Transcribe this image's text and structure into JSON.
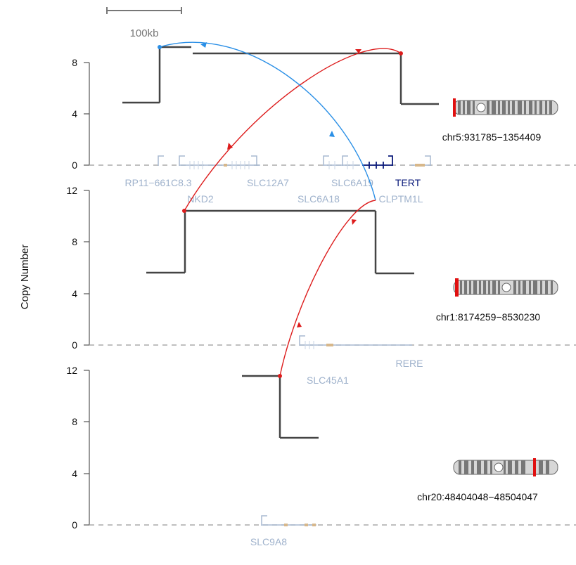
{
  "y_axis_label": "Copy Number",
  "scale_bar_label": "100kb",
  "colors": {
    "cn_line": "#444444",
    "baseline": "#aaaaaa",
    "gene": "#a7b8d0",
    "gene_highlight": "#0a1a7a",
    "gene_exon_alt": "#d7b78a",
    "link_red": "#dd1c1c",
    "link_blue": "#2a8fe6",
    "ideogram_band_dark": "#777777",
    "ideogram_band_light": "#d7d7d7",
    "ideogram_marker": "#e01010"
  },
  "chart_data": {
    "type": "genome-track",
    "tracks": [
      {
        "name": "chr5",
        "location_label": "chr5:931785−1354409",
        "yticks": [
          0,
          4,
          8
        ],
        "genes": [
          {
            "label": "RP11−661C8.3",
            "highlight": false
          },
          {
            "label": "NKD2",
            "highlight": false
          },
          {
            "label": "SLC12A7",
            "highlight": false
          },
          {
            "label": "SLC6A19",
            "highlight": false
          },
          {
            "label": "SLC6A18",
            "highlight": false
          },
          {
            "label": "TERT",
            "highlight": true
          },
          {
            "label": "CLPTM1L",
            "highlight": false
          }
        ],
        "copy_number_segments": [
          {
            "cn": 4.9
          },
          {
            "cn": 9.3
          },
          {
            "cn": 8.8
          },
          {
            "cn": 4.9
          }
        ],
        "ideogram_marker": "left"
      },
      {
        "name": "chr1",
        "location_label": "chr1:8174259−8530230",
        "yticks": [
          0,
          4,
          8,
          12
        ],
        "genes": [
          {
            "label": "SLC45A1",
            "highlight": false
          },
          {
            "label": "RERE",
            "highlight": false
          }
        ],
        "copy_number_segments": [
          {
            "cn": 5.7
          },
          {
            "cn": 10.5
          },
          {
            "cn": 5.7
          }
        ],
        "ideogram_marker": "left"
      },
      {
        "name": "chr20",
        "location_label": "chr20:48404048−48504047",
        "yticks": [
          0,
          4,
          8,
          12
        ],
        "genes": [
          {
            "label": "SLC9A8",
            "highlight": false
          }
        ],
        "copy_number_segments": [
          {
            "cn": 11.7
          },
          {
            "cn": 6.8
          }
        ],
        "ideogram_marker": "right"
      }
    ],
    "links": [
      {
        "from": "chr5",
        "to": "chr5",
        "color": "red"
      },
      {
        "from": "chr5",
        "to": "chr5",
        "color": "blue"
      },
      {
        "from": "chr1",
        "to": "chr20",
        "color": "red"
      }
    ]
  }
}
